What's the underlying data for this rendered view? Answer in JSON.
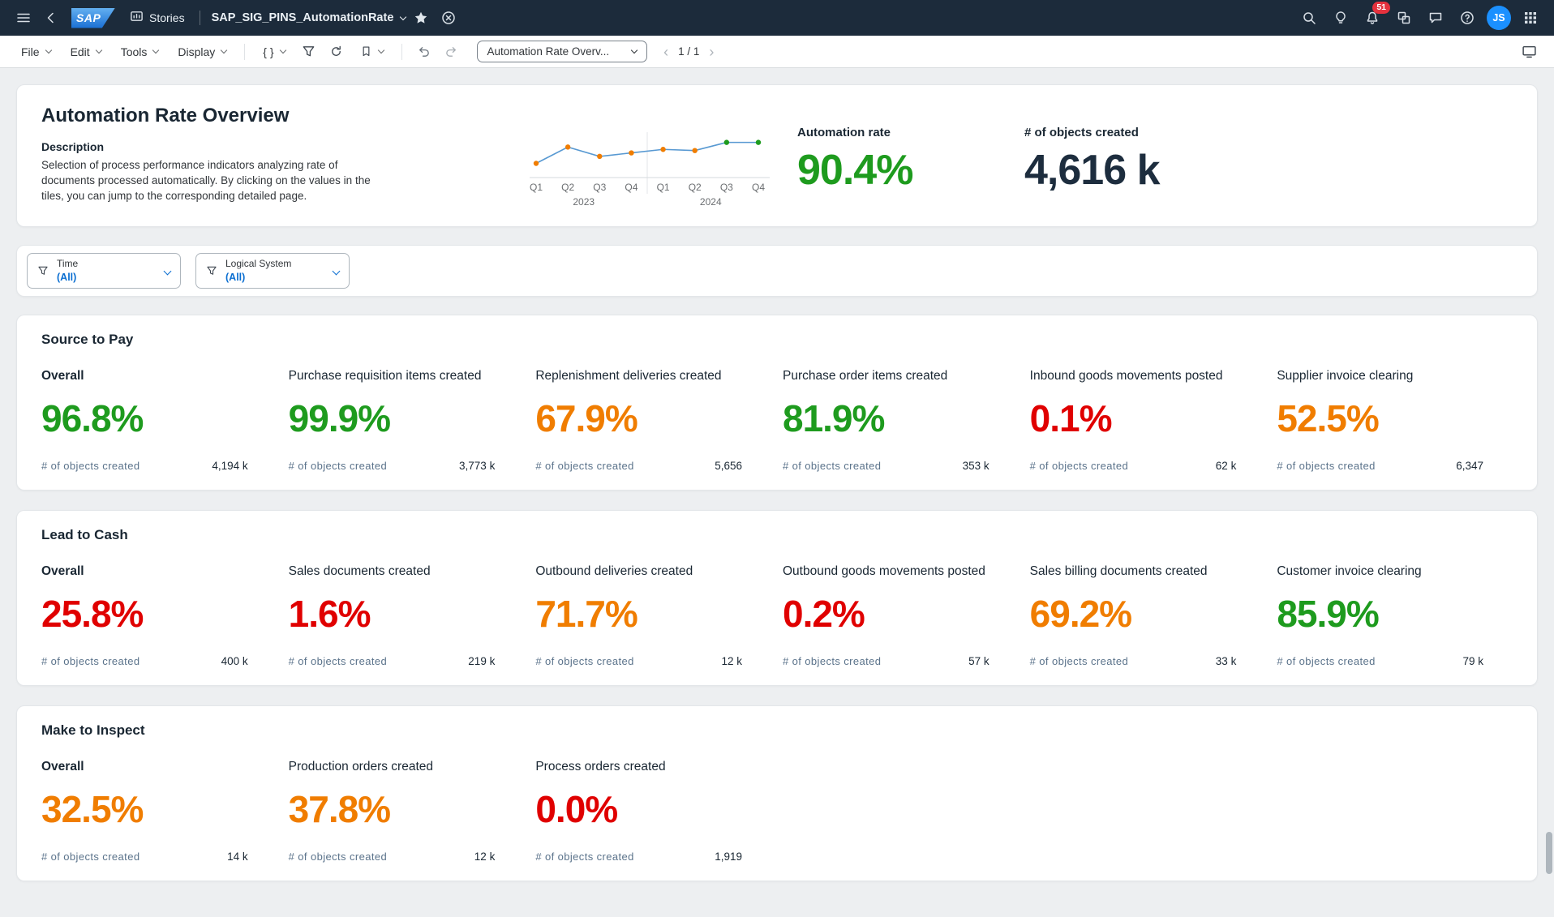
{
  "shell": {
    "product": "SAP",
    "stories_label": "Stories",
    "title": "SAP_SIG_PINS_AutomationRate",
    "notification_count": "51",
    "avatar_initials": "JS"
  },
  "toolbar": {
    "menus": [
      "File",
      "Edit",
      "Tools",
      "Display"
    ],
    "code_label": "{ }",
    "page_select": "Automation Rate Overv...",
    "pagination": "1 / 1"
  },
  "header": {
    "title": "Automation Rate Overview",
    "description_label": "Description",
    "description_text": "Selection of process performance indicators analyzing rate of documents processed automatically. By clicking on the values in the tiles,  you can jump to the corresponding detailed page.",
    "kpis": [
      {
        "label": "Automation rate",
        "value": "90.4%",
        "color": "#1e9b1e"
      },
      {
        "label": "# of objects created",
        "value": "4,616 k",
        "color": "#1d2d3e"
      }
    ],
    "sparkline": {
      "type": "line",
      "quarters": [
        "Q1",
        "Q2",
        "Q3",
        "Q4",
        "Q1",
        "Q2",
        "Q3",
        "Q4"
      ],
      "years": [
        "2023",
        "2024"
      ],
      "values": [
        84,
        91,
        87,
        88.5,
        90,
        89.5,
        93,
        93
      ],
      "marker_colors": [
        "#f07d00",
        "#f07d00",
        "#f07d00",
        "#f07d00",
        "#f07d00",
        "#f07d00",
        "#1e9b1e",
        "#1e9b1e"
      ],
      "line_color": "#5899d2"
    }
  },
  "filters": [
    {
      "label": "Time",
      "value": "(All)"
    },
    {
      "label": "Logical System",
      "value": "(All)"
    }
  ],
  "objects_label": "# of objects created",
  "status_colors": {
    "good": "#1e9b1e",
    "warning": "#f07d00",
    "critical": "#e00000"
  },
  "sections": [
    {
      "title": "Source to Pay",
      "tiles": [
        {
          "label": "Overall",
          "bold": true,
          "value": "96.8%",
          "status": "good",
          "objects": "4,194 k"
        },
        {
          "label": "Purchase requisition items created",
          "value": "99.9%",
          "status": "good",
          "objects": "3,773 k"
        },
        {
          "label": "Replenishment deliveries created",
          "value": "67.9%",
          "status": "warning",
          "objects": "5,656"
        },
        {
          "label": "Purchase order items created",
          "value": "81.9%",
          "status": "good",
          "objects": "353 k"
        },
        {
          "label": "Inbound goods movements posted",
          "value": "0.1%",
          "status": "critical",
          "objects": "62 k"
        },
        {
          "label": "Supplier invoice clearing",
          "value": "52.5%",
          "status": "warning",
          "objects": "6,347"
        }
      ]
    },
    {
      "title": "Lead to Cash",
      "tiles": [
        {
          "label": "Overall",
          "bold": true,
          "value": "25.8%",
          "status": "critical",
          "objects": "400 k"
        },
        {
          "label": "Sales documents created",
          "value": "1.6%",
          "status": "critical",
          "objects": "219 k"
        },
        {
          "label": "Outbound deliveries created",
          "value": "71.7%",
          "status": "warning",
          "objects": "12 k"
        },
        {
          "label": "Outbound goods movements posted",
          "value": "0.2%",
          "status": "critical",
          "objects": "57 k"
        },
        {
          "label": "Sales billing documents created",
          "value": "69.2%",
          "status": "warning",
          "objects": "33 k"
        },
        {
          "label": "Customer invoice clearing",
          "value": "85.9%",
          "status": "good",
          "objects": "79 k"
        }
      ]
    },
    {
      "title": "Make to Inspect",
      "tiles": [
        {
          "label": "Overall",
          "bold": true,
          "value": "32.5%",
          "status": "warning",
          "objects": "14 k"
        },
        {
          "label": "Production orders created",
          "value": "37.8%",
          "status": "warning",
          "objects": "12 k"
        },
        {
          "label": "Process orders created",
          "value": "0.0%",
          "status": "critical",
          "objects": "1,919"
        }
      ]
    }
  ]
}
